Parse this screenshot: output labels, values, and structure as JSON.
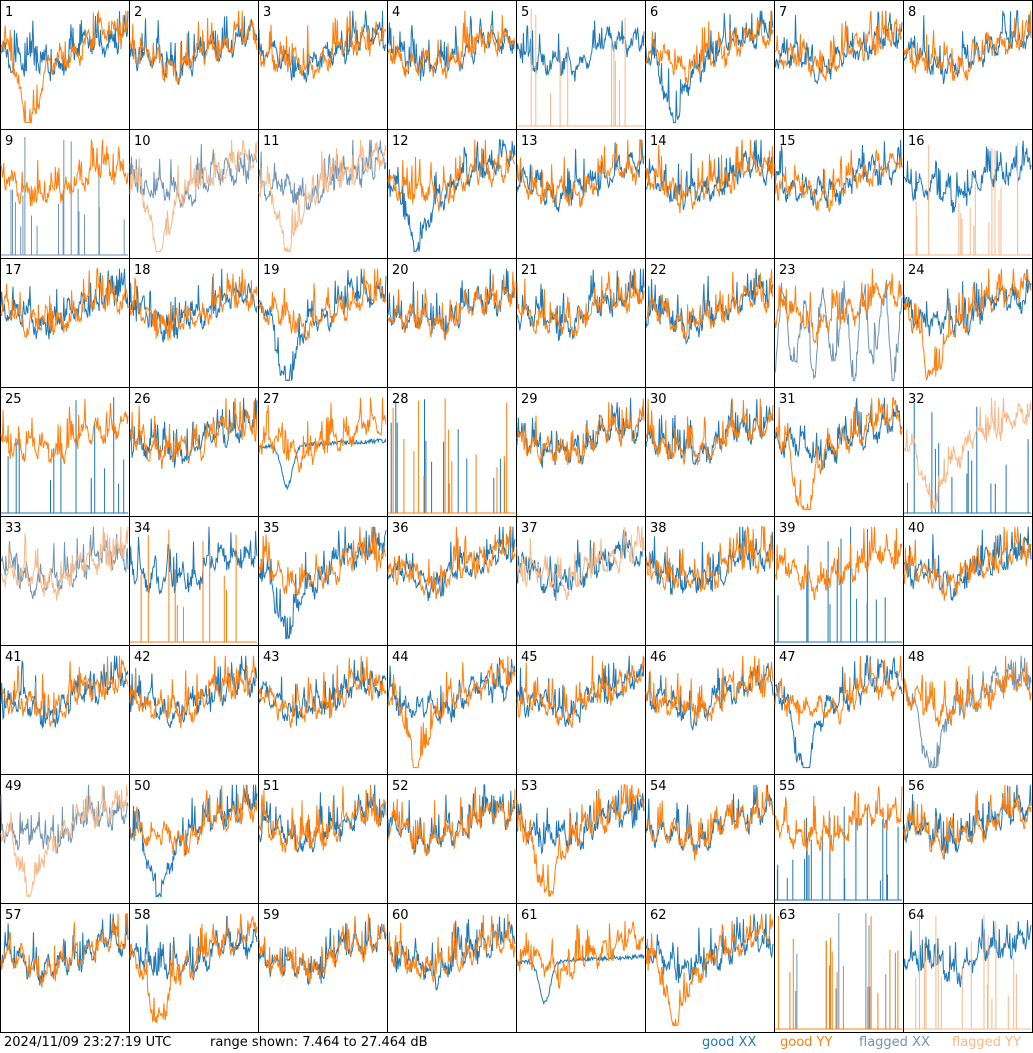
{
  "header": {
    "timestamp": "2024/11/09 23:27:19 UTC",
    "range_text": "range shown: 7.464 to 27.464 dB"
  },
  "legend": {
    "good_xx": "good XX",
    "good_yy": "good YY",
    "flagged_xx": "flagged XX",
    "flagged_yy": "flagged YY"
  },
  "colors": {
    "good_xx": "#1f77b4",
    "good_yy": "#ff7f0e",
    "flagged_xx": "#6f93b3",
    "flagged_yy": "#f7b888",
    "frame": "#000000"
  },
  "chart_data": {
    "type": "line",
    "grid_layout": "8x8 small multiples",
    "ylim_db": [
      7.464,
      27.464
    ],
    "panels": [
      {
        "id": "1",
        "xx": "normal",
        "yy": "deep_dip",
        "flagged_xx": false,
        "flagged_yy": false
      },
      {
        "id": "2",
        "xx": "normal",
        "yy": "normal",
        "flagged_xx": false,
        "flagged_yy": false
      },
      {
        "id": "3",
        "xx": "normal",
        "yy": "normal",
        "flagged_xx": false,
        "flagged_yy": false
      },
      {
        "id": "4",
        "xx": "normal",
        "yy": "normal",
        "flagged_xx": false,
        "flagged_yy": false
      },
      {
        "id": "5",
        "xx": "normal",
        "yy": "spikes",
        "flagged_xx": false,
        "flagged_yy": true
      },
      {
        "id": "6",
        "xx": "deep_dip",
        "yy": "normal",
        "flagged_xx": false,
        "flagged_yy": false
      },
      {
        "id": "7",
        "xx": "normal",
        "yy": "normal",
        "flagged_xx": false,
        "flagged_yy": false
      },
      {
        "id": "8",
        "xx": "normal",
        "yy": "normal",
        "flagged_xx": false,
        "flagged_yy": false
      },
      {
        "id": "9",
        "xx": "spikes",
        "yy": "normal",
        "flagged_xx": true,
        "flagged_yy": false
      },
      {
        "id": "10",
        "xx": "normal",
        "yy": "deep_dip",
        "flagged_xx": true,
        "flagged_yy": true
      },
      {
        "id": "11",
        "xx": "normal",
        "yy": "deep_dip",
        "flagged_xx": true,
        "flagged_yy": true
      },
      {
        "id": "12",
        "xx": "deep_dip",
        "yy": "normal",
        "flagged_xx": false,
        "flagged_yy": false
      },
      {
        "id": "13",
        "xx": "normal",
        "yy": "normal",
        "flagged_xx": false,
        "flagged_yy": false
      },
      {
        "id": "14",
        "xx": "normal",
        "yy": "normal",
        "flagged_xx": false,
        "flagged_yy": false
      },
      {
        "id": "15",
        "xx": "normal",
        "yy": "normal",
        "flagged_xx": false,
        "flagged_yy": false
      },
      {
        "id": "16",
        "xx": "normal",
        "yy": "spikes",
        "flagged_xx": false,
        "flagged_yy": true
      },
      {
        "id": "17",
        "xx": "normal",
        "yy": "normal",
        "flagged_xx": false,
        "flagged_yy": false
      },
      {
        "id": "18",
        "xx": "normal",
        "yy": "normal",
        "flagged_xx": false,
        "flagged_yy": false
      },
      {
        "id": "19",
        "xx": "deep_dip",
        "yy": "normal",
        "flagged_xx": false,
        "flagged_yy": false
      },
      {
        "id": "20",
        "xx": "normal",
        "yy": "normal",
        "flagged_xx": false,
        "flagged_yy": false
      },
      {
        "id": "21",
        "xx": "normal",
        "yy": "normal",
        "flagged_xx": false,
        "flagged_yy": false
      },
      {
        "id": "22",
        "xx": "normal",
        "yy": "normal",
        "flagged_xx": false,
        "flagged_yy": false
      },
      {
        "id": "23",
        "xx": "osc_low",
        "yy": "normal",
        "flagged_xx": true,
        "flagged_yy": false
      },
      {
        "id": "24",
        "xx": "normal",
        "yy": "deep_dip",
        "flagged_xx": false,
        "flagged_yy": false
      },
      {
        "id": "25",
        "xx": "spikes",
        "yy": "normal",
        "flagged_xx": false,
        "flagged_yy": false
      },
      {
        "id": "26",
        "xx": "normal",
        "yy": "normal",
        "flagged_xx": false,
        "flagged_yy": false
      },
      {
        "id": "27",
        "xx": "curve",
        "yy": "normal",
        "flagged_xx": false,
        "flagged_yy": false
      },
      {
        "id": "28",
        "xx": "spikes",
        "yy": "spikes",
        "flagged_xx": false,
        "flagged_yy": false
      },
      {
        "id": "29",
        "xx": "normal",
        "yy": "normal",
        "flagged_xx": false,
        "flagged_yy": false
      },
      {
        "id": "30",
        "xx": "normal",
        "yy": "normal",
        "flagged_xx": false,
        "flagged_yy": false
      },
      {
        "id": "31",
        "xx": "normal",
        "yy": "deep_dip",
        "flagged_xx": false,
        "flagged_yy": false
      },
      {
        "id": "32",
        "xx": "spikes",
        "yy": "deep_dip",
        "flagged_xx": false,
        "flagged_yy": true
      },
      {
        "id": "33",
        "xx": "normal",
        "yy": "normal",
        "flagged_xx": true,
        "flagged_yy": true
      },
      {
        "id": "34",
        "xx": "normal",
        "yy": "spikes",
        "flagged_xx": false,
        "flagged_yy": false
      },
      {
        "id": "35",
        "xx": "deep_dip",
        "yy": "normal",
        "flagged_xx": false,
        "flagged_yy": false
      },
      {
        "id": "36",
        "xx": "normal",
        "yy": "normal",
        "flagged_xx": false,
        "flagged_yy": false
      },
      {
        "id": "37",
        "xx": "normal",
        "yy": "normal",
        "flagged_xx": false,
        "flagged_yy": true
      },
      {
        "id": "38",
        "xx": "normal",
        "yy": "normal",
        "flagged_xx": false,
        "flagged_yy": false
      },
      {
        "id": "39",
        "xx": "spikes",
        "yy": "normal",
        "flagged_xx": false,
        "flagged_yy": false
      },
      {
        "id": "40",
        "xx": "normal",
        "yy": "normal",
        "flagged_xx": false,
        "flagged_yy": false
      },
      {
        "id": "41",
        "xx": "normal",
        "yy": "normal",
        "flagged_xx": false,
        "flagged_yy": false
      },
      {
        "id": "42",
        "xx": "normal",
        "yy": "normal",
        "flagged_xx": false,
        "flagged_yy": false
      },
      {
        "id": "43",
        "xx": "normal",
        "yy": "normal",
        "flagged_xx": false,
        "flagged_yy": false
      },
      {
        "id": "44",
        "xx": "normal",
        "yy": "deep_dip",
        "flagged_xx": false,
        "flagged_yy": false
      },
      {
        "id": "45",
        "xx": "normal",
        "yy": "normal",
        "flagged_xx": false,
        "flagged_yy": false
      },
      {
        "id": "46",
        "xx": "normal",
        "yy": "normal",
        "flagged_xx": false,
        "flagged_yy": false
      },
      {
        "id": "47",
        "xx": "deep_dip",
        "yy": "normal",
        "flagged_xx": false,
        "flagged_yy": false
      },
      {
        "id": "48",
        "xx": "deep_dip",
        "yy": "normal",
        "flagged_xx": true,
        "flagged_yy": false
      },
      {
        "id": "49",
        "xx": "normal",
        "yy": "deep_dip",
        "flagged_xx": true,
        "flagged_yy": true
      },
      {
        "id": "50",
        "xx": "deep_dip",
        "yy": "normal",
        "flagged_xx": false,
        "flagged_yy": false
      },
      {
        "id": "51",
        "xx": "normal",
        "yy": "normal",
        "flagged_xx": false,
        "flagged_yy": false
      },
      {
        "id": "52",
        "xx": "normal",
        "yy": "normal",
        "flagged_xx": false,
        "flagged_yy": false
      },
      {
        "id": "53",
        "xx": "normal",
        "yy": "deep_dip",
        "flagged_xx": false,
        "flagged_yy": false
      },
      {
        "id": "54",
        "xx": "normal",
        "yy": "normal",
        "flagged_xx": false,
        "flagged_yy": false
      },
      {
        "id": "55",
        "xx": "spikes_low",
        "yy": "normal",
        "flagged_xx": false,
        "flagged_yy": false
      },
      {
        "id": "56",
        "xx": "normal",
        "yy": "normal",
        "flagged_xx": false,
        "flagged_yy": false
      },
      {
        "id": "57",
        "xx": "normal",
        "yy": "normal",
        "flagged_xx": false,
        "flagged_yy": false
      },
      {
        "id": "58",
        "xx": "normal",
        "yy": "deep_dip",
        "flagged_xx": false,
        "flagged_yy": false
      },
      {
        "id": "59",
        "xx": "normal",
        "yy": "normal",
        "flagged_xx": false,
        "flagged_yy": false
      },
      {
        "id": "60",
        "xx": "normal",
        "yy": "normal",
        "flagged_xx": false,
        "flagged_yy": false
      },
      {
        "id": "61",
        "xx": "curve",
        "yy": "normal",
        "flagged_xx": false,
        "flagged_yy": false
      },
      {
        "id": "62",
        "xx": "normal",
        "yy": "deep_dip",
        "flagged_xx": false,
        "flagged_yy": false
      },
      {
        "id": "63",
        "xx": "spikes",
        "yy": "spikes",
        "flagged_xx": true,
        "flagged_yy": false
      },
      {
        "id": "64",
        "xx": "normal",
        "yy": "spikes",
        "flagged_xx": false,
        "flagged_yy": true
      }
    ]
  }
}
